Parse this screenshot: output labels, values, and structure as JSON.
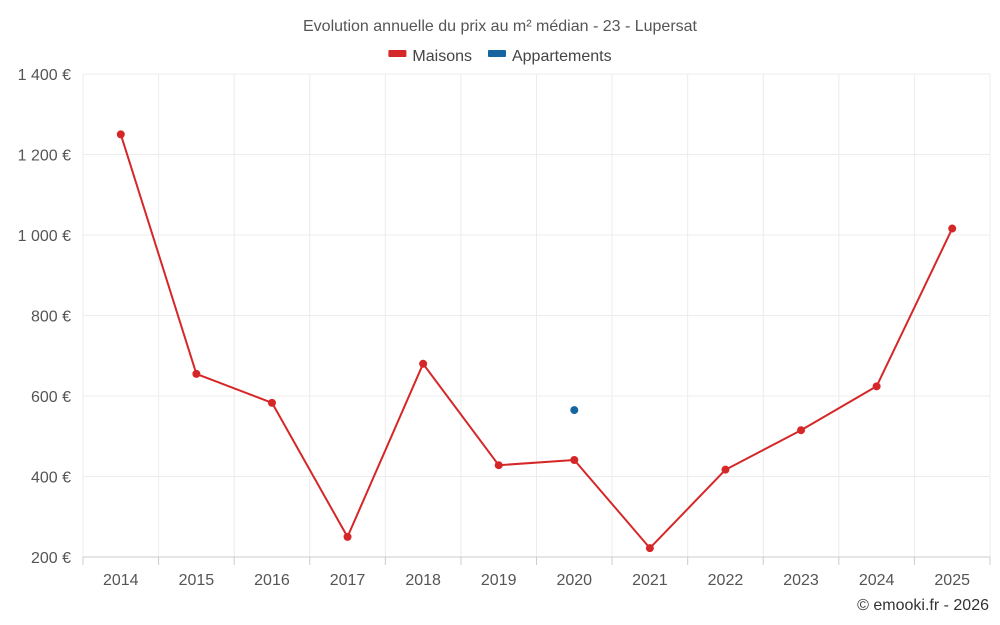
{
  "chart_data": {
    "type": "line",
    "title": "Evolution annuelle du prix au m² médian - 23 - Lupersat",
    "xlabel": "",
    "ylabel": "",
    "categories": [
      "2014",
      "2015",
      "2016",
      "2017",
      "2018",
      "2019",
      "2020",
      "2021",
      "2022",
      "2023",
      "2024",
      "2025"
    ],
    "ylim": [
      200,
      1400
    ],
    "yticks": [
      200,
      400,
      600,
      800,
      1000,
      1200,
      1400
    ],
    "ytick_labels": [
      "200 €",
      "400 €",
      "600 €",
      "800 €",
      "1 000 €",
      "1 200 €",
      "1 400 €"
    ],
    "grid": true,
    "legend_position": "top-center",
    "series": [
      {
        "name": "Maisons",
        "color": "#d62728",
        "values": [
          1250,
          655,
          583,
          250,
          680,
          428,
          441,
          222,
          417,
          515,
          624,
          1016
        ]
      },
      {
        "name": "Appartements",
        "color": "#1565a0",
        "values": [
          null,
          null,
          null,
          null,
          null,
          null,
          565,
          null,
          null,
          null,
          null,
          null
        ]
      }
    ]
  },
  "credit": "© emooki.fr - 2026"
}
